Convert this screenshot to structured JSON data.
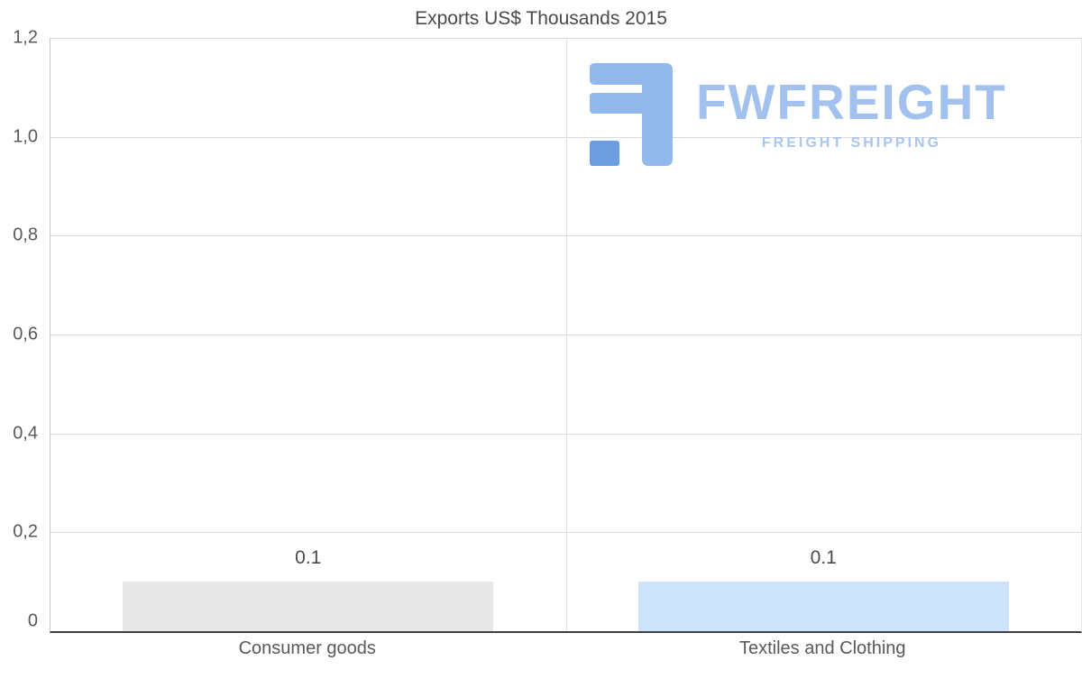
{
  "chart_data": {
    "type": "bar",
    "title": "Exports US$ Thousands 2015",
    "categories": [
      "Consumer goods",
      "Textiles and Clothing"
    ],
    "values": [
      0.1,
      0.1
    ],
    "value_labels": [
      "0.1",
      "0.1"
    ],
    "bar_colors": [
      "#e7e7e7",
      "#cde3fa"
    ],
    "xlabel": "",
    "ylabel": "",
    "ylim": [
      0,
      1.2
    ],
    "yticks": [
      0,
      0.2,
      0.4,
      0.6,
      0.8,
      1.0,
      1.2
    ],
    "ytick_labels": [
      "0",
      "0,2",
      "0,4",
      "0,6",
      "0,8",
      "1,0",
      "1,2"
    ],
    "grid": "horizontal",
    "legend": "none"
  },
  "watermark": {
    "brand": "FWFREIGHT",
    "tagline": "FREIGHT SHIPPING",
    "brand_color": "#a3c1ee",
    "icon_color": "#93b8ec",
    "icon_accent_color": "#6d9de1"
  }
}
